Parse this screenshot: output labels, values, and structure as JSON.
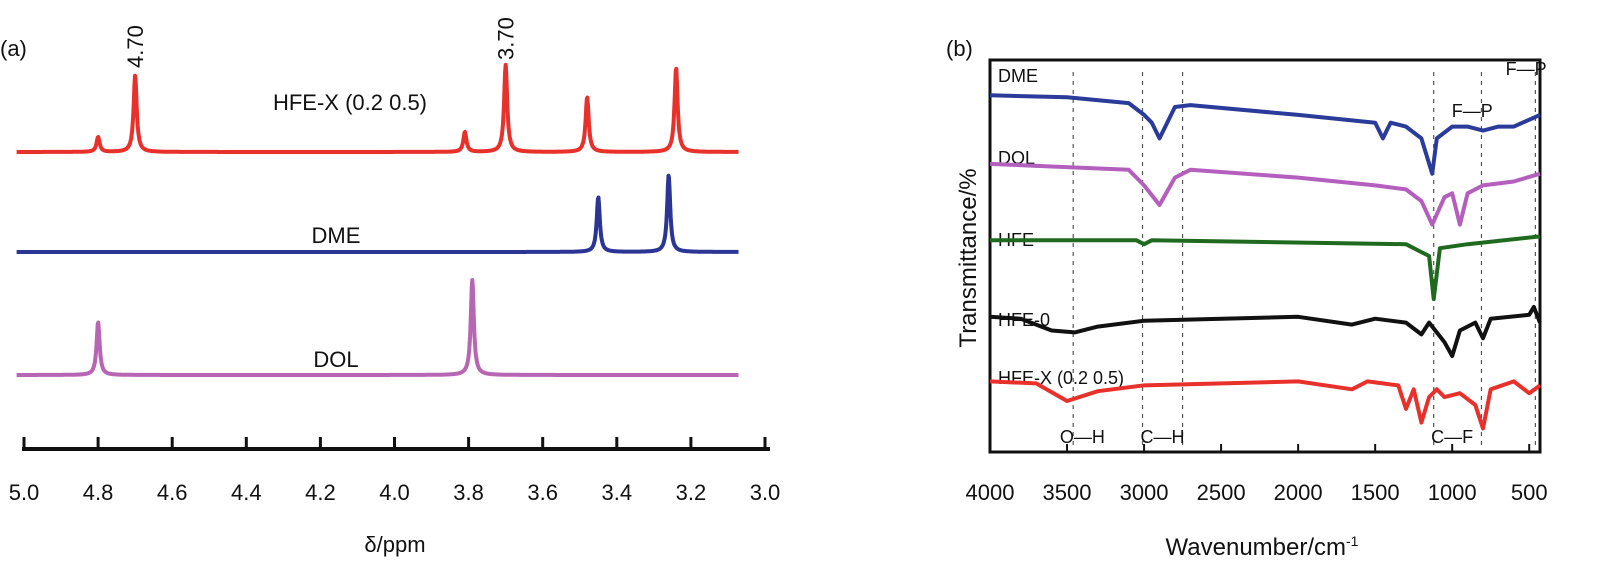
{
  "chart_data": [
    {
      "type": "line",
      "panel_label": "(a)",
      "xlabel": "δ/ppm",
      "xlim": [
        5.0,
        3.0
      ],
      "x_reversed": true,
      "xticks": [
        "5.0",
        "4.8",
        "4.6",
        "4.4",
        "4.2",
        "4.0",
        "3.8",
        "3.6",
        "3.4",
        "3.2",
        "3.0"
      ],
      "grid": false,
      "annotations": [
        "4.70",
        "3.70"
      ],
      "series": [
        {
          "name": "HFE-X (0.2 0.5)",
          "color": "#e8312b",
          "peaks": [
            {
              "ppm": 4.8,
              "intensity": 15
            },
            {
              "ppm": 4.7,
              "intensity": 77
            },
            {
              "ppm": 3.81,
              "intensity": 20
            },
            {
              "ppm": 3.7,
              "intensity": 87
            },
            {
              "ppm": 3.48,
              "intensity": 55
            },
            {
              "ppm": 3.24,
              "intensity": 84
            }
          ]
        },
        {
          "name": "DME",
          "color": "#2b3593",
          "peaks": [
            {
              "ppm": 3.45,
              "intensity": 55
            },
            {
              "ppm": 3.26,
              "intensity": 77
            }
          ]
        },
        {
          "name": "DOL",
          "color": "#b766b3",
          "peaks": [
            {
              "ppm": 4.8,
              "intensity": 53
            },
            {
              "ppm": 3.79,
              "intensity": 95
            }
          ]
        }
      ]
    },
    {
      "type": "line",
      "panel_label": "(b)",
      "xlabel": "Wavenumber/cm",
      "xlabel_sup": "-1",
      "ylabel": "Transmittance/%",
      "xlim": [
        4000,
        430
      ],
      "x_reversed": true,
      "xticks": [
        "4000",
        "3500",
        "3000",
        "2500",
        "2000",
        "1500",
        "1000",
        "500"
      ],
      "grid": false,
      "reference_lines": [
        3460,
        3010,
        2750,
        1120,
        810,
        460
      ],
      "annotations": [
        {
          "text": "O—H",
          "x": 3400
        },
        {
          "text": "C—H",
          "x": 2880
        },
        {
          "text": "C—F",
          "x": 1000
        },
        {
          "text": "F—P",
          "x": 870
        },
        {
          "text": "F—P",
          "x": 520
        }
      ],
      "series": [
        {
          "name": "DME",
          "color": "#2b3b9a",
          "points": [
            [
              4000,
              91
            ],
            [
              3500,
              90.5
            ],
            [
              3100,
              89
            ],
            [
              3000,
              86
            ],
            [
              2950,
              84
            ],
            [
              2900,
              80
            ],
            [
              2850,
              84
            ],
            [
              2800,
              88
            ],
            [
              2700,
              88.5
            ],
            [
              2000,
              86
            ],
            [
              1500,
              84
            ],
            [
              1450,
              80
            ],
            [
              1400,
              84
            ],
            [
              1300,
              83
            ],
            [
              1200,
              80
            ],
            [
              1130,
              71
            ],
            [
              1100,
              80
            ],
            [
              1000,
              83
            ],
            [
              900,
              83
            ],
            [
              800,
              82
            ],
            [
              700,
              83
            ],
            [
              600,
              83
            ],
            [
              430,
              86
            ]
          ]
        },
        {
          "name": "DOL",
          "color": "#b45fbd",
          "points": [
            [
              4000,
              73.5
            ],
            [
              3100,
              72
            ],
            [
              3000,
              68
            ],
            [
              2900,
              63
            ],
            [
              2800,
              70
            ],
            [
              2700,
              72
            ],
            [
              2000,
              70
            ],
            [
              1500,
              68
            ],
            [
              1300,
              67
            ],
            [
              1200,
              64
            ],
            [
              1130,
              58
            ],
            [
              1050,
              65
            ],
            [
              1000,
              66
            ],
            [
              950,
              58
            ],
            [
              900,
              66
            ],
            [
              800,
              68
            ],
            [
              600,
              69
            ],
            [
              430,
              71
            ]
          ]
        },
        {
          "name": "HFE",
          "color": "#1f6a1f",
          "points": [
            [
              4000,
              54
            ],
            [
              3050,
              54
            ],
            [
              3000,
              53
            ],
            [
              2950,
              54
            ],
            [
              1300,
              53
            ],
            [
              1200,
              51
            ],
            [
              1150,
              50
            ],
            [
              1120,
              39
            ],
            [
              1080,
              52
            ],
            [
              900,
              53
            ],
            [
              430,
              55
            ]
          ]
        },
        {
          "name": "HFE-0",
          "color": "#111111",
          "points": [
            [
              4000,
              34.5
            ],
            [
              3800,
              34
            ],
            [
              3600,
              31
            ],
            [
              3450,
              30.5
            ],
            [
              3300,
              32
            ],
            [
              3000,
              33.5
            ],
            [
              2000,
              34.5
            ],
            [
              1650,
              32.5
            ],
            [
              1500,
              34
            ],
            [
              1300,
              33
            ],
            [
              1200,
              30
            ],
            [
              1150,
              33
            ],
            [
              1050,
              28
            ],
            [
              1000,
              24.5
            ],
            [
              950,
              31
            ],
            [
              850,
              33
            ],
            [
              800,
              29
            ],
            [
              750,
              34
            ],
            [
              500,
              35
            ],
            [
              470,
              37
            ],
            [
              430,
              33
            ]
          ]
        },
        {
          "name": "HFE-X (0.2 0.5)",
          "color": "#e8312b",
          "points": [
            [
              4000,
              18
            ],
            [
              3700,
              17.5
            ],
            [
              3500,
              13
            ],
            [
              3300,
              15.5
            ],
            [
              3000,
              17
            ],
            [
              2000,
              18
            ],
            [
              1650,
              16
            ],
            [
              1550,
              18
            ],
            [
              1350,
              17
            ],
            [
              1300,
              11
            ],
            [
              1250,
              16
            ],
            [
              1200,
              7.5
            ],
            [
              1150,
              14
            ],
            [
              1100,
              16
            ],
            [
              1050,
              14
            ],
            [
              950,
              15
            ],
            [
              850,
              12
            ],
            [
              800,
              6
            ],
            [
              750,
              16
            ],
            [
              600,
              18
            ],
            [
              500,
              15
            ],
            [
              430,
              17
            ]
          ]
        }
      ]
    }
  ]
}
